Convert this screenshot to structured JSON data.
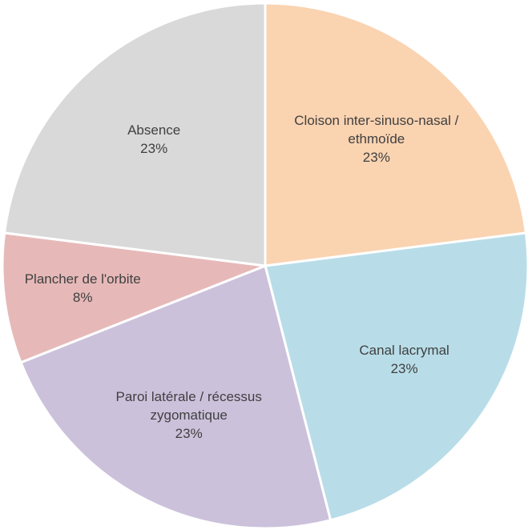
{
  "chart_data": {
    "type": "pie",
    "categories": [
      "Cloison inter-sinuso-nasal / ethmoïde",
      "Canal lacrymal",
      "Paroi latérale / récessus zygomatique",
      "Plancher de l'orbite",
      "Absence"
    ],
    "values": [
      23,
      23,
      23,
      8,
      23
    ],
    "value_labels": [
      "23%",
      "23%",
      "23%",
      "8%",
      "23%"
    ],
    "colors": [
      "#fad3b1",
      "#b8dde8",
      "#ccc1db",
      "#e6b9b8",
      "#d9d9d9"
    ]
  }
}
